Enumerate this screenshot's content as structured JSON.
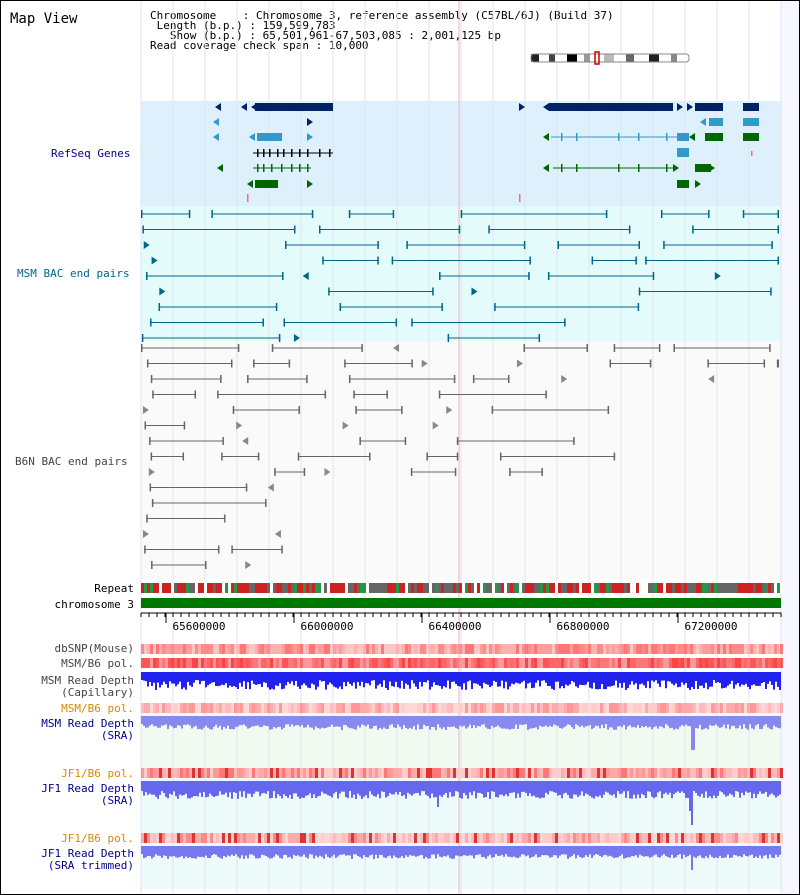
{
  "page_title": "Map View",
  "header": {
    "chromosome_label": "Chromosome",
    "chromosome_value": ": Chromosome 3, reference assembly (C57BL/6J) (Build 37)",
    "length_label": "Length (b.p.)",
    "length_value": ": 159,599,783",
    "show_label": "Show (b.p.)",
    "show_value": ": 65,501,961-67,503,085 : 2,001,125 bp",
    "coverage_label": "Read coverage check span",
    "coverage_value": ": 10,000"
  },
  "tracks": {
    "refseq": "RefSeq Genes",
    "msm_bac": "MSM BAC end pairs",
    "b6n_bac": "B6N BAC end pairs",
    "repeat": "Repeat",
    "chromosome": "chromosome 3",
    "dbsnp": "dbSNP(Mouse)",
    "msm_b6_pol_1": "MSM/B6 pol.",
    "msm_depth_cap_1": "MSM Read Depth",
    "msm_depth_cap_2": "(Capillary)",
    "msm_b6_pol_2": "MSM/B6 pol.",
    "msm_depth_sra_1": "MSM Read Depth",
    "msm_depth_sra_2": "(SRA)",
    "jf1_b6_pol_1": "JF1/B6 pol.",
    "jf1_depth_sra_1": "JF1 Read Depth",
    "jf1_depth_sra_2": "(SRA)",
    "jf1_b6_pol_2": "JF1/B6 pol.",
    "jf1_depth_trim_1": "JF1 Read Depth",
    "jf1_depth_trim_2": "(SRA trimmed)"
  },
  "axis": {
    "ticks": [
      "65600000",
      "66000000",
      "66400000",
      "66800000",
      "67200000"
    ]
  },
  "colors": {
    "refseq_bg": "#ddf0fb",
    "bac_bg": "#e4fbfb",
    "refseq_dark": "#002266",
    "refseq_light": "#3399cc",
    "refseq_green": "#006600",
    "msm_bac": "#006688",
    "b6n_bac": "#666666",
    "chromosome": "#007700",
    "label_blue": "#00008b",
    "label_teal": "#006688",
    "label_orange": "#dd8800",
    "label_gray": "#444444"
  }
}
